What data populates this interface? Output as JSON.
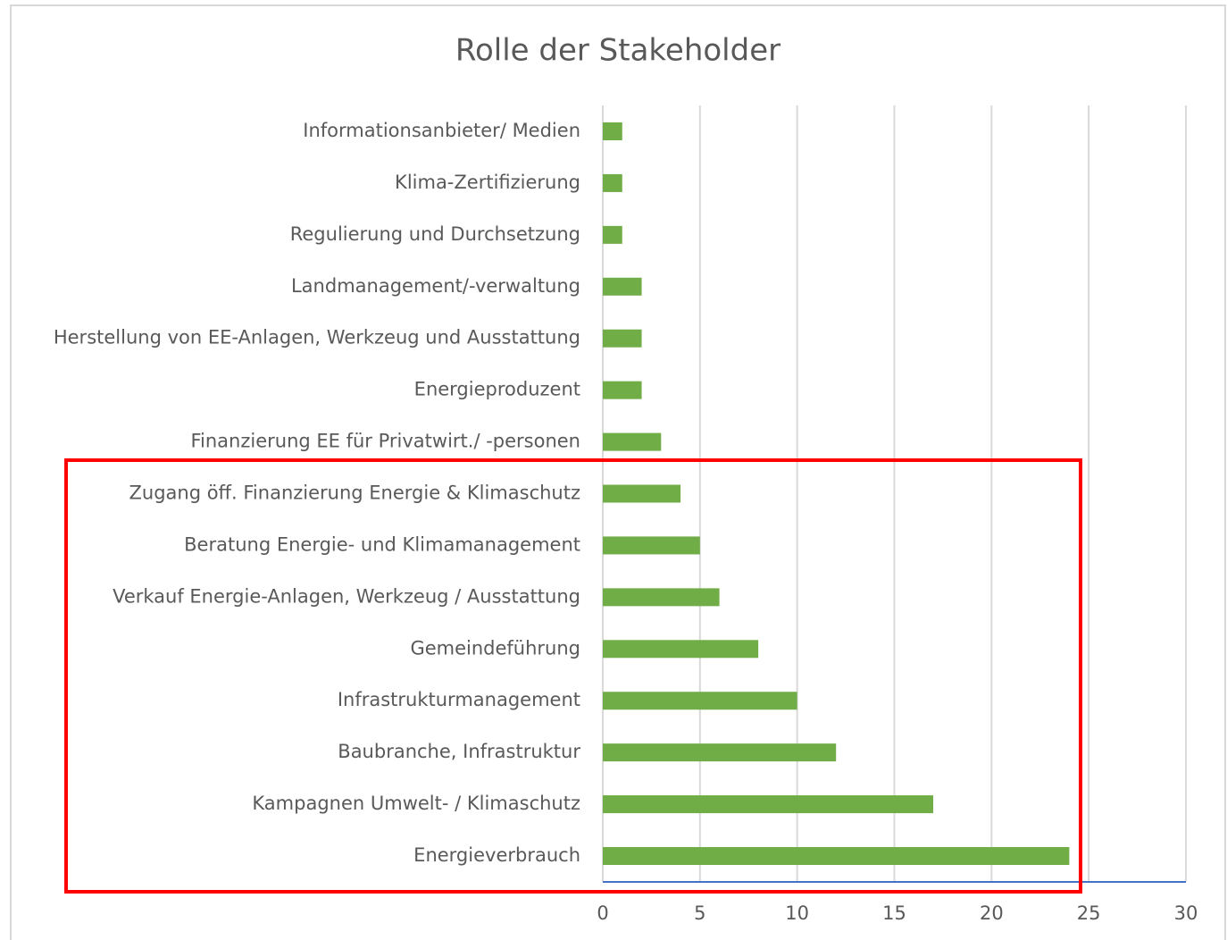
{
  "chart_data": {
    "type": "hbar",
    "title": "Rolle der Stakeholder",
    "categories": [
      "Informationsanbieter/ Medien",
      "Klima-Zertifizierung",
      "Regulierung und Durchsetzung",
      "Landmanagement/-verwaltung",
      "Herstellung von EE-Anlagen, Werkzeug und Ausstattung",
      "Energieproduzent",
      "Finanzierung EE für Privatwirt./ -personen",
      "Zugang öff. Finanzierung Energie & Klimaschutz",
      "Beratung Energie- und Klimamanagement",
      "Verkauf Energie-Anlagen, Werkzeug / Ausstattung",
      "Gemeindeführung",
      "Infrastrukturmanagement",
      "Baubranche, Infrastruktur",
      "Kampagnen Umwelt- / Klimaschutz",
      "Energieverbrauch"
    ],
    "values": [
      1,
      1,
      1,
      2,
      2,
      2,
      3,
      4,
      5,
      6,
      8,
      10,
      12,
      17,
      24
    ],
    "color": "#70ad47",
    "xlim": [
      0,
      30
    ],
    "xticks": [
      0,
      5,
      10,
      15,
      20,
      25,
      30
    ],
    "grid": true
  }
}
